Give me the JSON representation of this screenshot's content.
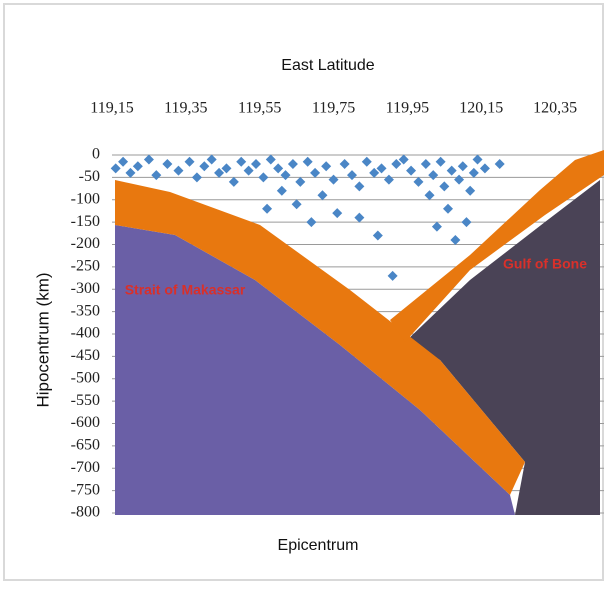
{
  "chart_data": {
    "type": "scatter",
    "title": "East Latitude",
    "ylabel": "Hipocentrum (km)",
    "xlabel": "Epicentrum",
    "annotations": [
      "Strait of Makassar",
      "Gulf of Bone"
    ],
    "xlim": [
      119.15,
      120.45
    ],
    "xticks": [
      {
        "value": 119.15,
        "label": "119,15"
      },
      {
        "value": 119.35,
        "label": "119,35"
      },
      {
        "value": 119.55,
        "label": "119,55"
      },
      {
        "value": 119.75,
        "label": "119,75"
      },
      {
        "value": 119.95,
        "label": "119,95"
      },
      {
        "value": 120.15,
        "label": "120,15"
      },
      {
        "value": 120.35,
        "label": "120,35"
      }
    ],
    "ylim": [
      -800,
      0
    ],
    "yticks": [
      0,
      -50,
      -100,
      -150,
      -200,
      -250,
      -300,
      -350,
      -400,
      -450,
      -500,
      -550,
      -600,
      -650,
      -700,
      -750,
      -800
    ],
    "grid": true,
    "color": "#4a86c6",
    "x": [
      119.16,
      119.18,
      119.2,
      119.22,
      119.25,
      119.27,
      119.3,
      119.33,
      119.36,
      119.38,
      119.4,
      119.42,
      119.44,
      119.46,
      119.48,
      119.5,
      119.52,
      119.54,
      119.56,
      119.58,
      119.6,
      119.61,
      119.62,
      119.64,
      119.65,
      119.66,
      119.68,
      119.69,
      119.7,
      119.72,
      119.73,
      119.75,
      119.76,
      119.78,
      119.8,
      119.82,
      119.84,
      119.86,
      119.87,
      119.88,
      119.9,
      119.91,
      119.92,
      119.94,
      119.96,
      119.98,
      120.0,
      120.01,
      120.02,
      120.03,
      120.04,
      120.05,
      120.06,
      120.07,
      120.08,
      120.09,
      120.1,
      120.11,
      120.12,
      120.13,
      120.14,
      120.16,
      120.2,
      119.57,
      119.82
    ],
    "values": [
      -30,
      -15,
      -40,
      -25,
      -10,
      -45,
      -20,
      -35,
      -15,
      -50,
      -25,
      -10,
      -40,
      -30,
      -60,
      -15,
      -35,
      -20,
      -50,
      -10,
      -30,
      -80,
      -45,
      -20,
      -110,
      -60,
      -15,
      -150,
      -40,
      -90,
      -25,
      -55,
      -130,
      -20,
      -45,
      -70,
      -15,
      -40,
      -180,
      -30,
      -55,
      -270,
      -20,
      -10,
      -35,
      -60,
      -20,
      -90,
      -45,
      -160,
      -15,
      -70,
      -120,
      -35,
      -190,
      -55,
      -25,
      -150,
      -80,
      -40,
      -10,
      -30,
      -20,
      -120,
      -140
    ]
  }
}
